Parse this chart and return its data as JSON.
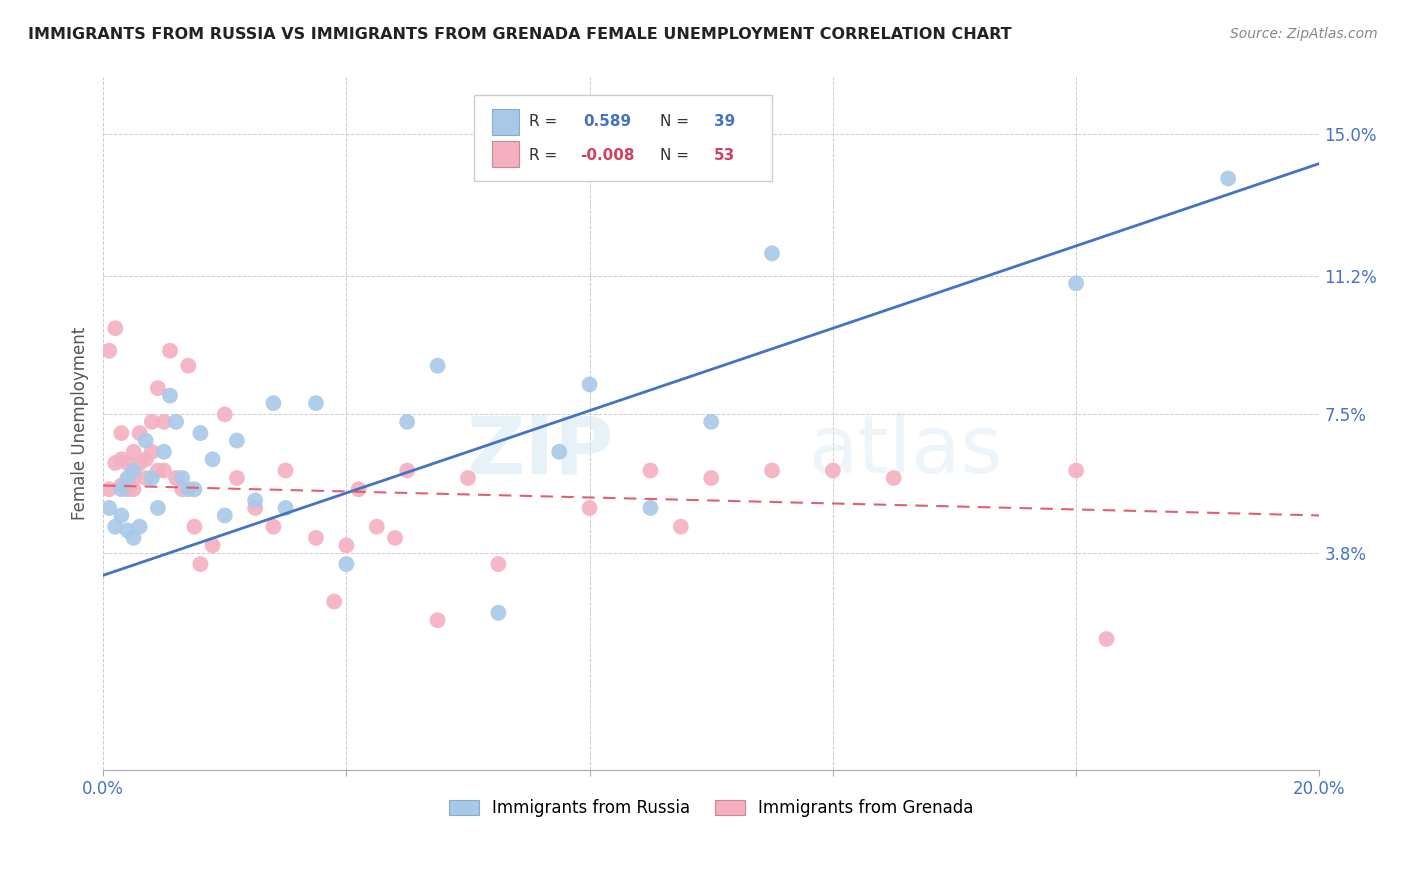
{
  "title": "IMMIGRANTS FROM RUSSIA VS IMMIGRANTS FROM GRENADA FEMALE UNEMPLOYMENT CORRELATION CHART",
  "source": "Source: ZipAtlas.com",
  "ylabel_label": "Female Unemployment",
  "x_min": 0.0,
  "x_max": 0.2,
  "y_min": -0.02,
  "y_max": 0.165,
  "x_ticks": [
    0.0,
    0.04,
    0.08,
    0.12,
    0.16,
    0.2
  ],
  "x_tick_labels": [
    "0.0%",
    "",
    "",
    "",
    "",
    "20.0%"
  ],
  "y_ticks": [
    0.038,
    0.075,
    0.112,
    0.15
  ],
  "y_tick_labels": [
    "3.8%",
    "7.5%",
    "11.2%",
    "15.0%"
  ],
  "color_russia": "#a8c8e8",
  "color_grenada": "#f4b0c0",
  "color_russia_line": "#4472c4",
  "color_grenada_line": "#e06070",
  "watermark_zip": "ZIP",
  "watermark_atlas": "atlas",
  "russia_x": [
    0.001,
    0.002,
    0.003,
    0.003,
    0.004,
    0.004,
    0.005,
    0.005,
    0.006,
    0.007,
    0.008,
    0.009,
    0.01,
    0.011,
    0.012,
    0.013,
    0.014,
    0.015,
    0.016,
    0.018,
    0.02,
    0.022,
    0.025,
    0.028,
    0.03,
    0.035,
    0.04,
    0.05,
    0.055,
    0.065,
    0.075,
    0.08,
    0.09,
    0.1,
    0.11,
    0.16,
    0.185
  ],
  "russia_y": [
    0.05,
    0.045,
    0.048,
    0.055,
    0.044,
    0.058,
    0.042,
    0.06,
    0.045,
    0.068,
    0.058,
    0.05,
    0.065,
    0.08,
    0.073,
    0.058,
    0.055,
    0.055,
    0.07,
    0.063,
    0.048,
    0.068,
    0.052,
    0.078,
    0.05,
    0.078,
    0.035,
    0.073,
    0.088,
    0.022,
    0.065,
    0.083,
    0.05,
    0.073,
    0.118,
    0.11,
    0.138
  ],
  "grenada_x": [
    0.001,
    0.001,
    0.002,
    0.002,
    0.003,
    0.003,
    0.003,
    0.004,
    0.004,
    0.005,
    0.005,
    0.005,
    0.006,
    0.006,
    0.007,
    0.007,
    0.008,
    0.008,
    0.009,
    0.009,
    0.01,
    0.01,
    0.011,
    0.012,
    0.013,
    0.014,
    0.015,
    0.016,
    0.018,
    0.02,
    0.022,
    0.025,
    0.028,
    0.03,
    0.035,
    0.038,
    0.04,
    0.042,
    0.045,
    0.048,
    0.05,
    0.055,
    0.06,
    0.065,
    0.08,
    0.09,
    0.095,
    0.1,
    0.11,
    0.12,
    0.13,
    0.16,
    0.165
  ],
  "grenada_y": [
    0.055,
    0.092,
    0.062,
    0.098,
    0.056,
    0.063,
    0.07,
    0.055,
    0.062,
    0.055,
    0.058,
    0.065,
    0.062,
    0.07,
    0.058,
    0.063,
    0.065,
    0.073,
    0.06,
    0.082,
    0.06,
    0.073,
    0.092,
    0.058,
    0.055,
    0.088,
    0.045,
    0.035,
    0.04,
    0.075,
    0.058,
    0.05,
    0.045,
    0.06,
    0.042,
    0.025,
    0.04,
    0.055,
    0.045,
    0.042,
    0.06,
    0.02,
    0.058,
    0.035,
    0.05,
    0.06,
    0.045,
    0.058,
    0.06,
    0.06,
    0.058,
    0.06,
    0.015
  ],
  "russia_line_x": [
    0.0,
    0.2
  ],
  "russia_line_y": [
    0.032,
    0.142
  ],
  "grenada_line_x": [
    0.0,
    0.2
  ],
  "grenada_line_y": [
    0.056,
    0.048
  ]
}
